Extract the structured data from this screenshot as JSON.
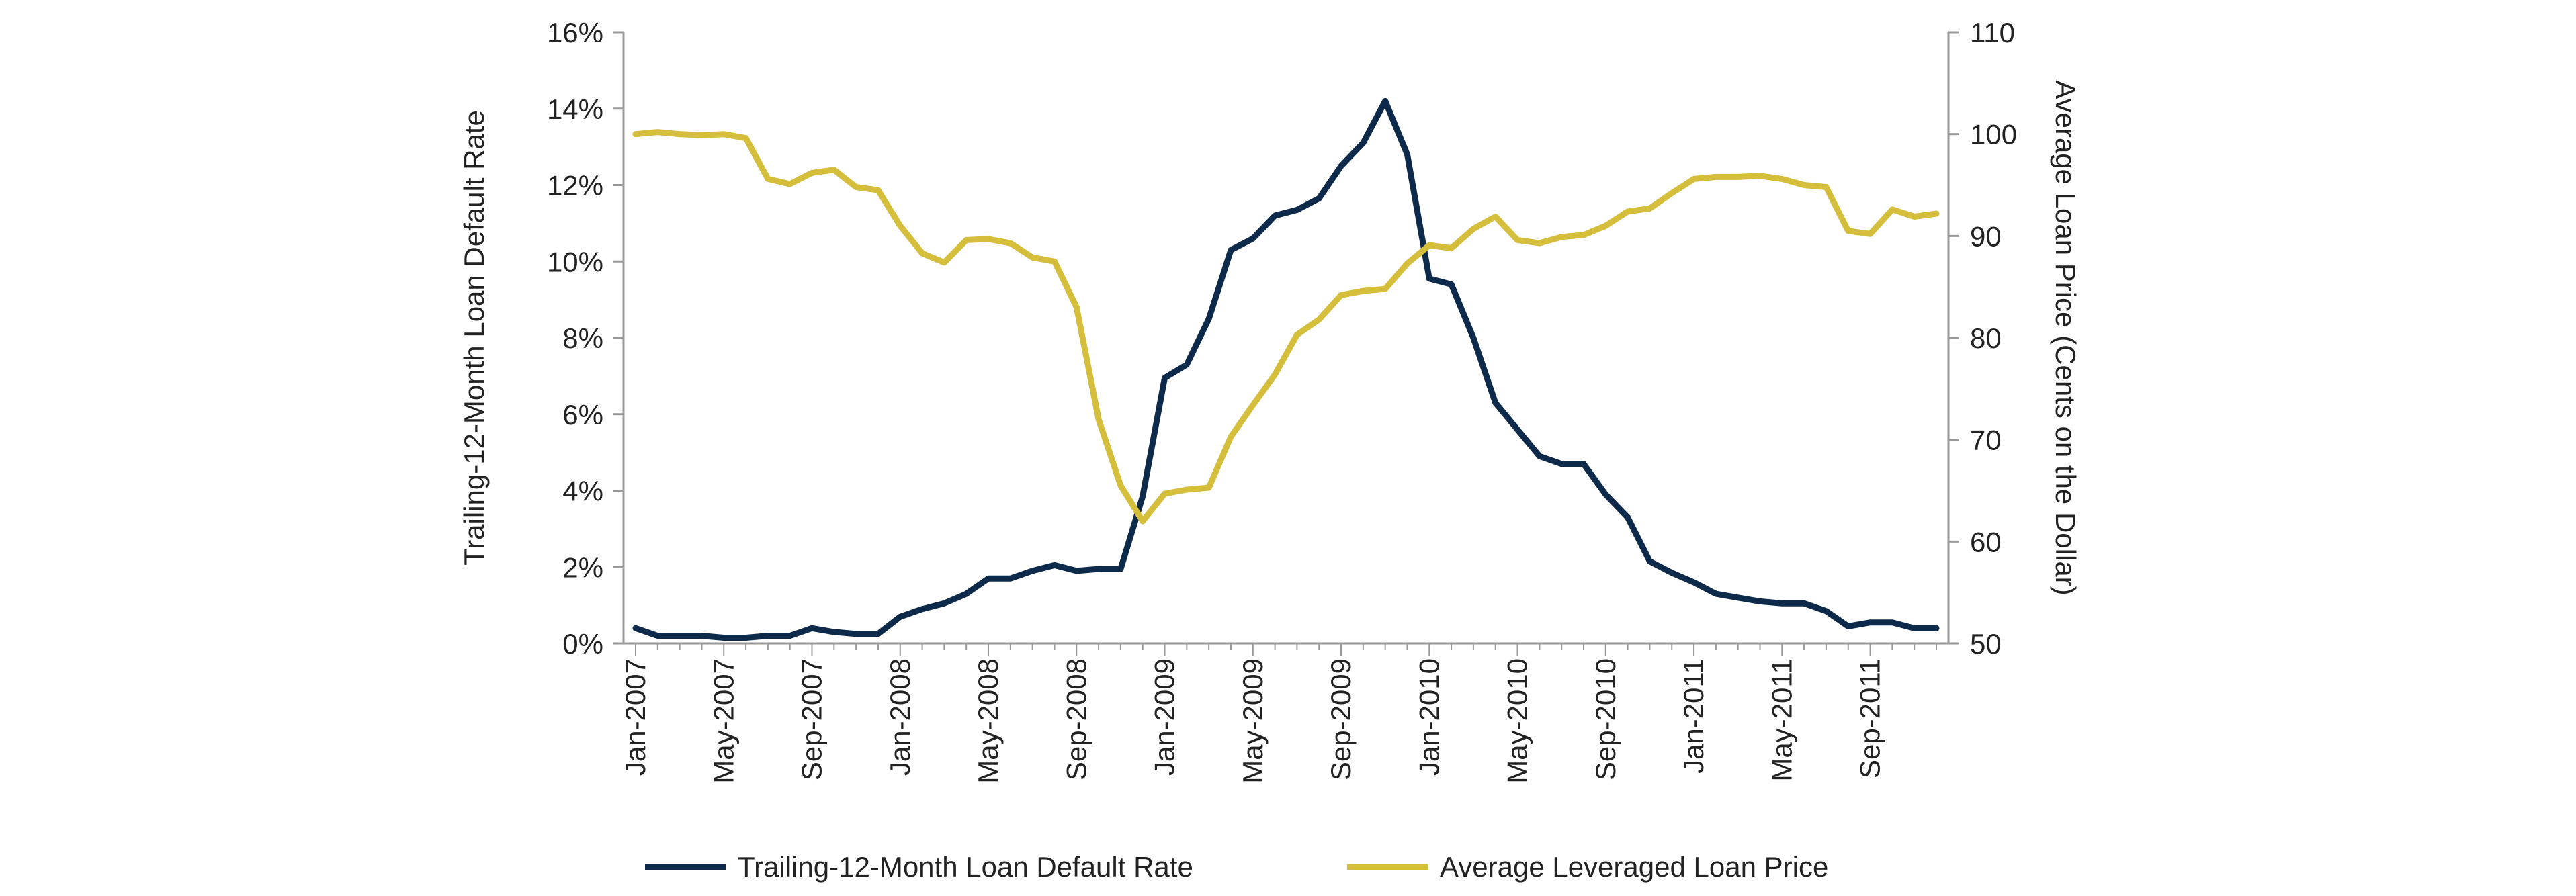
{
  "chart_data": {
    "type": "line",
    "title": "",
    "ylabel": "Trailing-12-Month Loan Default Rate",
    "y2label": "Average Loan Price (Cents on the Dollar)",
    "ylim": [
      0,
      16
    ],
    "y2lim": [
      50,
      110
    ],
    "yticks": [
      "0%",
      "2%",
      "4%",
      "6%",
      "8%",
      "10%",
      "12%",
      "14%",
      "16%"
    ],
    "yticks_values": [
      0,
      2,
      4,
      6,
      8,
      10,
      12,
      14,
      16
    ],
    "y2ticks": [
      "50",
      "60",
      "70",
      "80",
      "90",
      "100",
      "110"
    ],
    "y2ticks_values": [
      50,
      60,
      70,
      80,
      90,
      100,
      110
    ],
    "xticks": [
      "Jan-2007",
      "May-2007",
      "Sep-2007",
      "Jan-2008",
      "May-2008",
      "Sep-2008",
      "Jan-2009",
      "May-2009",
      "Sep-2009",
      "Jan-2010",
      "May-2010",
      "Sep-2010",
      "Jan-2011",
      "May-2011",
      "Sep-2011"
    ],
    "x_start": "Jan-2007",
    "x_step": "1 month",
    "grid": false,
    "legend_position": "bottom",
    "series": [
      {
        "name": "Trailing-12-Month Loan Default Rate",
        "axis": "left",
        "color": "#0e2a4a",
        "values": [
          0.4,
          0.2,
          0.2,
          0.2,
          0.15,
          0.15,
          0.2,
          0.2,
          0.4,
          0.3,
          0.25,
          0.25,
          0.7,
          0.9,
          1.05,
          1.3,
          1.7,
          1.7,
          1.9,
          2.05,
          1.9,
          1.95,
          1.95,
          3.85,
          6.95,
          7.3,
          8.5,
          10.3,
          10.6,
          11.2,
          11.35,
          11.65,
          12.5,
          13.1,
          14.2,
          12.8,
          9.55,
          9.4,
          8.0,
          6.3,
          5.6,
          4.9,
          4.7,
          4.7,
          3.9,
          3.3,
          2.15,
          1.85,
          1.6,
          1.3,
          1.2,
          1.1,
          1.05,
          1.05,
          0.85,
          0.45,
          0.55,
          0.55,
          0.4,
          0.4
        ]
      },
      {
        "name": "Average Leveraged Loan Price",
        "axis": "right",
        "color": "#d4be3c",
        "values": [
          100.0,
          100.2,
          100.0,
          99.9,
          100.0,
          99.6,
          95.6,
          95.1,
          96.2,
          96.5,
          94.8,
          94.5,
          91.0,
          88.3,
          87.4,
          89.6,
          89.7,
          89.3,
          87.9,
          87.5,
          83.0,
          72.0,
          65.5,
          62.0,
          64.7,
          65.1,
          65.3,
          70.3,
          73.4,
          76.4,
          80.3,
          81.8,
          84.2,
          84.6,
          84.8,
          87.3,
          89.1,
          88.8,
          90.7,
          91.9,
          89.6,
          89.3,
          89.9,
          90.1,
          91.0,
          92.4,
          92.7,
          94.2,
          95.6,
          95.8,
          95.8,
          95.9,
          95.6,
          95.0,
          94.8,
          90.5,
          90.2,
          92.6,
          91.9,
          92.2
        ]
      }
    ]
  }
}
